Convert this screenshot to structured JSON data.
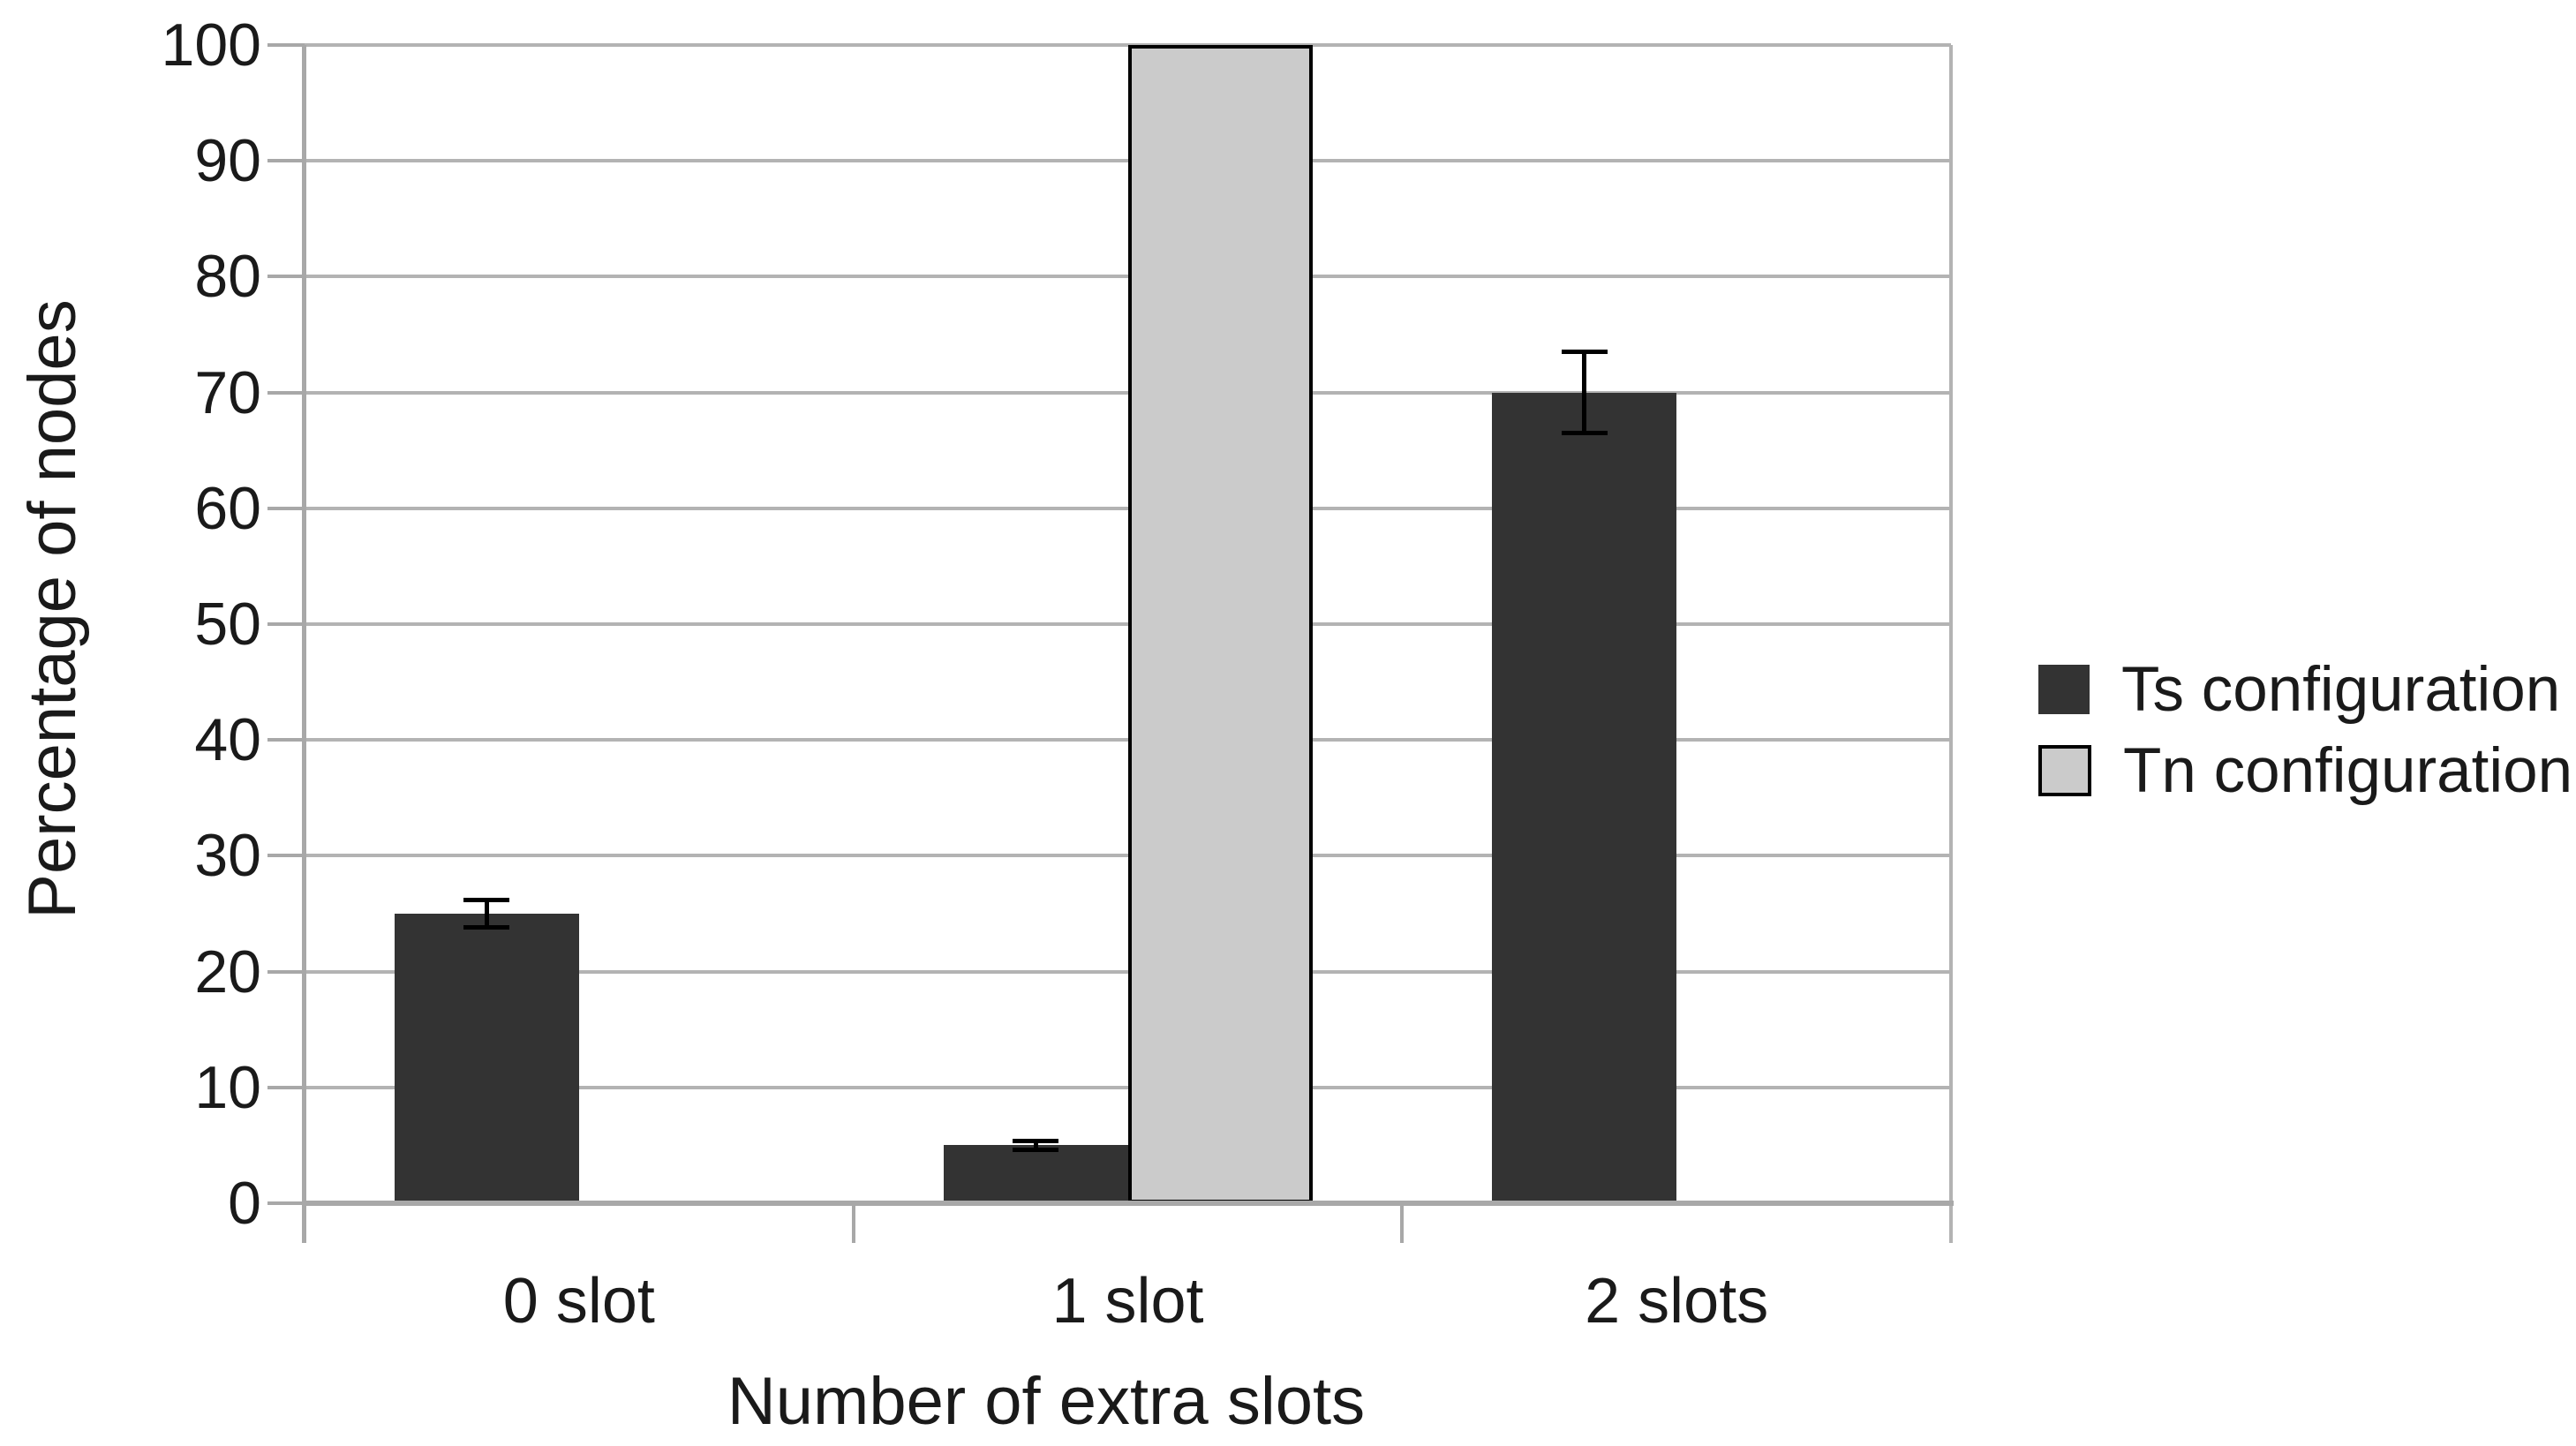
{
  "chart_data": {
    "type": "bar",
    "title": "",
    "xlabel": "Number of extra slots",
    "ylabel": "Percentage of nodes",
    "categories": [
      "0 slot",
      "1 slot",
      "2 slots"
    ],
    "series": [
      {
        "name": "Ts configuration",
        "color": "#333333",
        "border": "#333333",
        "values": [
          25,
          5,
          70
        ],
        "errors": [
          1.2,
          0.4,
          3.5
        ]
      },
      {
        "name": "Tn configuration",
        "color": "#cbcbcb",
        "border": "#000000",
        "values": [
          0,
          100,
          0
        ],
        "errors": [
          null,
          null,
          null
        ]
      }
    ],
    "ylim": [
      0,
      100
    ],
    "yticks": [
      0,
      10,
      20,
      30,
      40,
      50,
      60,
      70,
      80,
      90,
      100
    ],
    "grid": true,
    "legend_position": "right",
    "error_bar_color": "#000000",
    "gridline_color": "#b3b3b3",
    "axis_color": "#a8a8a8",
    "background_color": "#ffffff"
  }
}
